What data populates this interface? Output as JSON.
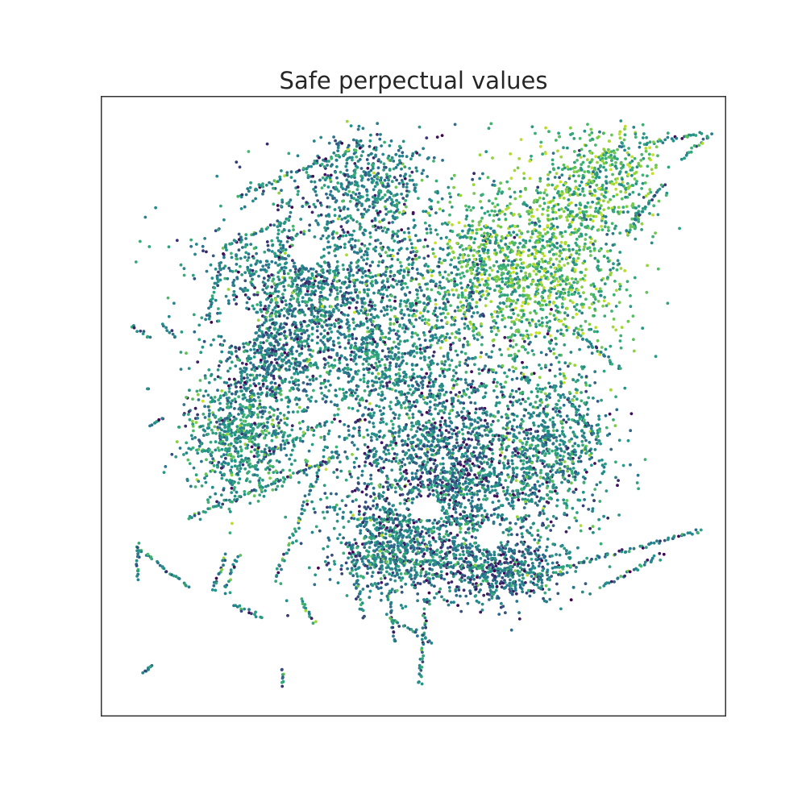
{
  "chart_data": {
    "type": "scatter",
    "title": "Safe perpectual values",
    "xlabel": "",
    "ylabel": "",
    "axes_ticks": "none",
    "grid": false,
    "legend": "none",
    "colormap": "viridis",
    "value_range": [
      0,
      1
    ],
    "colors": {
      "low": "#3b2b6e",
      "mid_low": "#2d6f8e",
      "mid": "#23918a",
      "mid_high": "#3cb373",
      "high": "#b5de2b",
      "frame": "#333333",
      "title": "#262626"
    },
    "description_of_pattern": "",
    "series": [
      {
        "name": "",
        "points_note": "",
        "clusters": [
          {
            "region": "center",
            "cx": 0.5,
            "cy": 0.5,
            "mean_value": 0.45
          },
          {
            "region": "north-west",
            "cx": 0.28,
            "cy": 0.3,
            "mean_value": 0.42
          },
          {
            "region": "north-east",
            "cx": 0.7,
            "cy": 0.27,
            "mean_value": 0.72
          },
          {
            "region": "south",
            "cx": 0.55,
            "cy": 0.72,
            "mean_value": 0.38
          },
          {
            "region": "west",
            "cx": 0.2,
            "cy": 0.55,
            "mean_value": 0.5
          },
          {
            "region": "south-east",
            "cx": 0.75,
            "cy": 0.7,
            "mean_value": 0.48
          }
        ]
      }
    ]
  }
}
